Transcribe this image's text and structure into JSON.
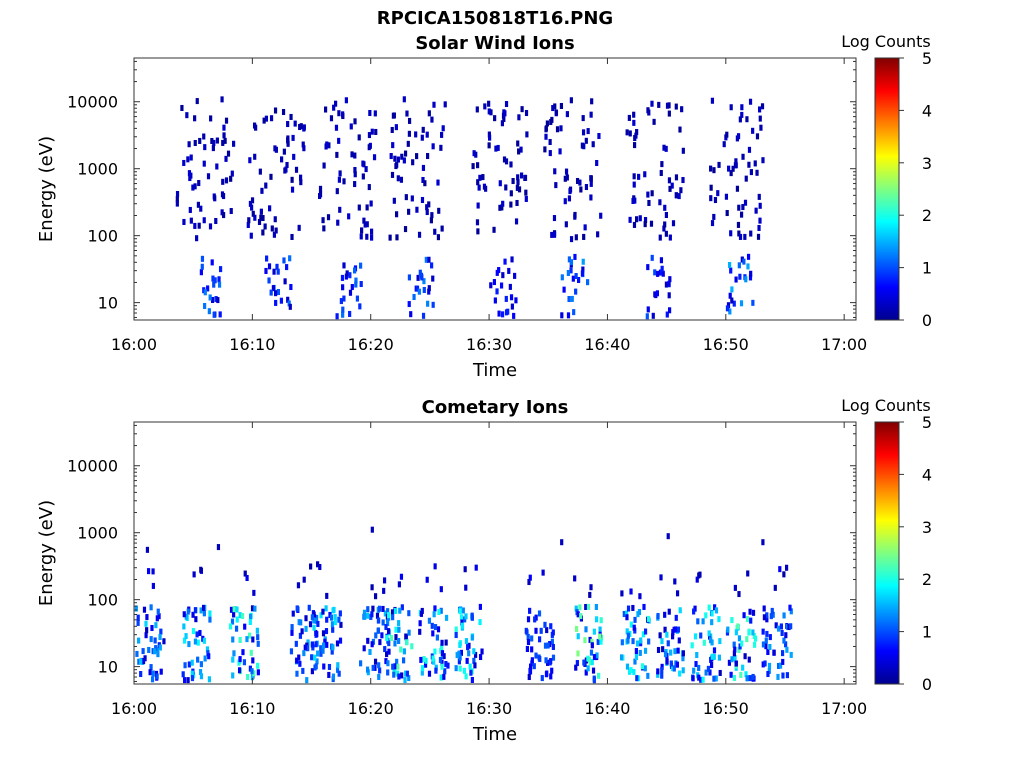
{
  "figure_title": "RPCICA150818T16.PNG",
  "colorbar": {
    "label": "Log Counts",
    "ticks": [
      0,
      1,
      2,
      3,
      4,
      5
    ],
    "range": [
      0,
      5
    ]
  },
  "chart_data": [
    {
      "type": "heatmap",
      "title": "Solar Wind Ions",
      "xlabel": "Time",
      "ylabel": "Energy (eV)",
      "yscale": "log",
      "ylim": [
        5.5,
        45000
      ],
      "xlim": [
        "16:00",
        "17:01"
      ],
      "x_ticks": [
        "16:00",
        "16:10",
        "16:20",
        "16:30",
        "16:40",
        "16:50",
        "17:00"
      ],
      "y_ticks": [
        "10",
        "100",
        "1000",
        "10000"
      ],
      "grid": false,
      "bursts": [
        {
          "time": "16:06",
          "lowE_counts": 1.0
        },
        {
          "time": "16:12",
          "lowE_counts": 0.9
        },
        {
          "time": "16:18",
          "lowE_counts": 0.9
        },
        {
          "time": "16:24",
          "lowE_counts": 1.0
        },
        {
          "time": "16:31",
          "lowE_counts": 0.5
        },
        {
          "time": "16:37",
          "lowE_counts": 1.1
        },
        {
          "time": "16:44",
          "lowE_counts": 0.8
        },
        {
          "time": "16:51",
          "lowE_counts": 1.2
        }
      ]
    },
    {
      "type": "heatmap",
      "title": "Cometary Ions",
      "xlabel": "Time",
      "ylabel": "Energy (eV)",
      "yscale": "log",
      "ylim": [
        5.5,
        45000
      ],
      "xlim": [
        "16:00",
        "17:01"
      ],
      "x_ticks": [
        "16:00",
        "16:10",
        "16:20",
        "16:30",
        "16:40",
        "16:50",
        "17:00"
      ],
      "y_ticks": [
        "10",
        "100",
        "1000",
        "10000"
      ],
      "grid": false,
      "bursts": [
        {
          "time": "16:01",
          "peak_counts": 1.4
        },
        {
          "time": "16:05",
          "peak_counts": 1.6
        },
        {
          "time": "16:09",
          "peak_counts": 2.0
        },
        {
          "time": "16:14",
          "peak_counts": 1.2
        },
        {
          "time": "16:16",
          "peak_counts": 1.5
        },
        {
          "time": "16:20",
          "peak_counts": 1.3
        },
        {
          "time": "16:22",
          "peak_counts": 2.0
        },
        {
          "time": "16:25",
          "peak_counts": 1.8
        },
        {
          "time": "16:28",
          "peak_counts": 1.8
        },
        {
          "time": "16:34",
          "peak_counts": 0.8
        },
        {
          "time": "16:38",
          "peak_counts": 2.2
        },
        {
          "time": "16:42",
          "peak_counts": 1.8
        },
        {
          "time": "16:45",
          "peak_counts": 1.5
        },
        {
          "time": "16:48",
          "peak_counts": 1.8
        },
        {
          "time": "16:51",
          "peak_counts": 2.0
        },
        {
          "time": "16:54",
          "peak_counts": 1.2
        }
      ],
      "isolated_points": [
        {
          "time": "16:01",
          "energy": 500
        },
        {
          "time": "16:07",
          "energy": 550
        },
        {
          "time": "16:20",
          "energy": 1000
        },
        {
          "time": "16:36",
          "energy": 650
        },
        {
          "time": "16:45",
          "energy": 800
        },
        {
          "time": "16:53",
          "energy": 650
        },
        {
          "time": "16:55",
          "energy": 270
        }
      ]
    }
  ]
}
